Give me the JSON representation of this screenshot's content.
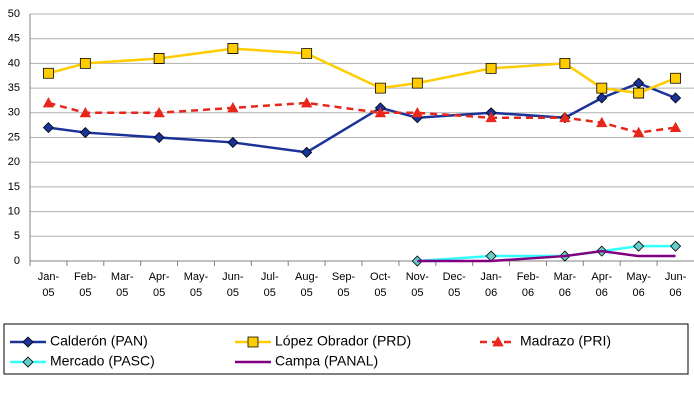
{
  "chart_data": {
    "type": "line",
    "categories": [
      "Jan-05",
      "Feb-05",
      "Mar-05",
      "Apr-05",
      "May-05",
      "Jun-05",
      "Jul-05",
      "Aug-05",
      "Sep-05",
      "Oct-05",
      "Nov-05",
      "Dec-05",
      "Jan-06",
      "Feb-06",
      "Mar-06",
      "Apr-06",
      "May-06",
      "Jun-06"
    ],
    "series": [
      {
        "name": "Calderón (PAN)",
        "color": "#1a3399",
        "marker": "diamond",
        "marker_fill": "#1a3399",
        "values": [
          27,
          26,
          null,
          25,
          null,
          24,
          null,
          22,
          null,
          31,
          29,
          null,
          30,
          null,
          29,
          33,
          36,
          33
        ]
      },
      {
        "name": "López Obrador (PRD)",
        "color": "#ffcc00",
        "marker": "square",
        "marker_fill": "#ffcc00",
        "values": [
          38,
          40,
          null,
          41,
          null,
          43,
          null,
          42,
          null,
          35,
          36,
          null,
          39,
          null,
          40,
          35,
          34,
          37
        ]
      },
      {
        "name": "Madrazo (PRI)",
        "color": "#e8261b",
        "marker": "triangle",
        "marker_fill": "#e8261b",
        "dashed": true,
        "values": [
          32,
          30,
          null,
          30,
          null,
          31,
          null,
          32,
          null,
          30,
          30,
          null,
          29,
          null,
          29,
          28,
          26,
          27
        ]
      },
      {
        "name": "Mercado (PASC)",
        "color": "#33ffff",
        "marker": "diamond",
        "marker_fill": "#66cccc",
        "values": [
          null,
          null,
          null,
          null,
          null,
          null,
          null,
          null,
          null,
          null,
          0,
          null,
          1,
          null,
          1,
          2,
          3,
          3
        ]
      },
      {
        "name": "Campa (PANAL)",
        "color": "#800080",
        "values": [
          null,
          null,
          null,
          null,
          null,
          null,
          null,
          null,
          null,
          null,
          0,
          null,
          0,
          null,
          1,
          2,
          1,
          1
        ]
      }
    ],
    "ylim": [
      0,
      50
    ],
    "yticks": [
      0,
      5,
      10,
      15,
      20,
      25,
      30,
      35,
      40,
      45,
      50
    ],
    "grid": true,
    "span_gaps": true
  }
}
